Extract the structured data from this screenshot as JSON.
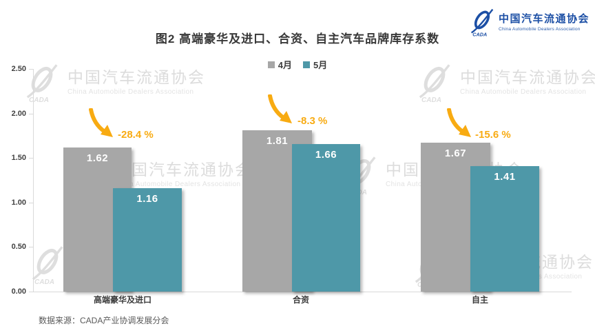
{
  "header": {
    "title": "图2  高端豪华及进口、合资、自主汽车品牌库存系数",
    "logo": {
      "cn": "中国汽车流通协会",
      "en": "China Automobile Dealers Association",
      "cada": "CADA",
      "color": "#1c4fa5"
    }
  },
  "legend": [
    {
      "label": "4月",
      "color": "#a7a7a7"
    },
    {
      "label": "5月",
      "color": "#4e98a8"
    }
  ],
  "watermark": {
    "cn": "中国汽车流通协会",
    "en": "China Automobile Dealers Association",
    "cada": "CADA"
  },
  "footer": {
    "source": "数据来源：CADA产业协调发展分会"
  },
  "chart_data": {
    "type": "bar",
    "title": "图2  高端豪华及进口、合资、自主汽车品牌库存系数",
    "categories": [
      "高端豪华及进口",
      "合资",
      "自主"
    ],
    "series": [
      {
        "name": "4月",
        "color": "#a7a7a7",
        "values": [
          1.62,
          1.81,
          1.67
        ]
      },
      {
        "name": "5月",
        "color": "#4e98a8",
        "values": [
          1.16,
          1.66,
          1.41
        ]
      }
    ],
    "changes": [
      "-28.4 %",
      "-8.3 %",
      "-15.6 %"
    ],
    "ylabel": "",
    "xlabel": "",
    "ylim": [
      0,
      2.5
    ],
    "yticks": [
      "2.50",
      "2.00",
      "1.50",
      "1.00",
      "0.50",
      "0.00"
    ],
    "grid": false,
    "legend_position": "top",
    "accent_color": "#f8ab12"
  }
}
